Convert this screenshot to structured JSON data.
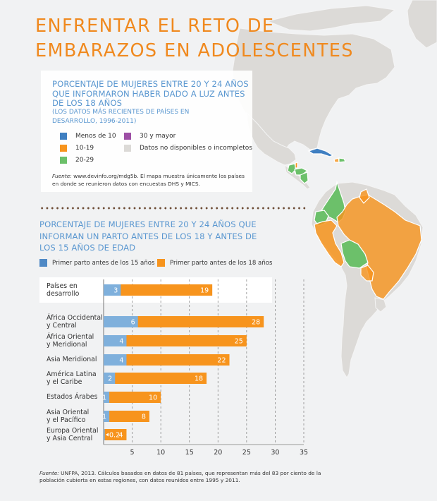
{
  "title_lines": [
    "ENFRENTAR EL RETO DE",
    "EMBARAZOS EN ADOLESCENTES"
  ],
  "map_legend": {
    "title": "PORCENTAJE DE MUJERES ENTRE 20 Y 24 AÑOS QUE INFORMARON HABER DADO A LUZ ANTES DE LOS 18 AÑOS",
    "subtitle": "(LOS DATOS MÁS RECIENTES DE PAÍSES EN DESARROLLO, 1996-2011)",
    "items": [
      {
        "label": "Menos de 10",
        "color": "#3f7fc1"
      },
      {
        "label": "10-19",
        "color": "#f7941d"
      },
      {
        "label": "20-29",
        "color": "#6cc06a"
      },
      {
        "label": "30 y mayor",
        "color": "#9d4fa5"
      },
      {
        "label": "Datos no disponibles o incompletos",
        "color": "#dcdad7"
      }
    ],
    "source_label": "Fuente:",
    "source_text": " www.devinfo.org/mdg5b. El mapa muestra únicamente los países en donde se reunieron datos con encuestas DHS y MICS."
  },
  "map_regions": {
    "colored": [
      {
        "region": "Cuba",
        "category": "Menos de 10"
      },
      {
        "region": "Haiti",
        "category": "10-19"
      },
      {
        "region": "Dominican Republic",
        "category": "20-29"
      },
      {
        "region": "Guatemala",
        "category": "20-29"
      },
      {
        "region": "Belize",
        "category": "10-19"
      },
      {
        "region": "Honduras",
        "category": "20-29"
      },
      {
        "region": "Nicaragua",
        "category": "20-29"
      },
      {
        "region": "Colombia",
        "category": "20-29"
      },
      {
        "region": "Ecuador",
        "category": "20-29"
      },
      {
        "region": "Peru",
        "category": "10-19"
      },
      {
        "region": "Bolivia",
        "category": "20-29"
      },
      {
        "region": "Brazil",
        "category": "10-19"
      },
      {
        "region": "Guyana",
        "category": "10-19"
      },
      {
        "region": "Paraguay",
        "category": "10-19"
      }
    ]
  },
  "chart_data": {
    "type": "bar",
    "orientation": "horizontal",
    "stacked_overlay": true,
    "title": "PORCENTAJE DE MUJERES ENTRE 20 Y 24 AÑOS QUE INFORMAN UN PARTO ANTES DE LOS 18 Y ANTES DE LOS 15 AÑOS DE EDAD",
    "xlabel": "",
    "ylabel": "",
    "xlim": [
      0,
      35
    ],
    "xticks": [
      5,
      10,
      15,
      20,
      25,
      30,
      35
    ],
    "grid": "vertical-dashed",
    "legend_position": "top-left",
    "categories": [
      "Países en desarrollo",
      "África Occidental y Central",
      "África Oriental y Meridional",
      "Asia Meridional",
      "América Latina y el Caribe",
      "Estados Árabes",
      "Asia Oriental y el Pacífico",
      "Europa Oriental y Asia Central"
    ],
    "category_label_lines": [
      [
        "Países en",
        "desarrollo"
      ],
      [
        "África Occidental",
        "y Central"
      ],
      [
        "África Oriental",
        "y Meridional"
      ],
      [
        "Asia Meridional"
      ],
      [
        "América Latina",
        "y el Caribe"
      ],
      [
        "Estados Árabes"
      ],
      [
        "Asia Oriental",
        "y el Pacífico"
      ],
      [
        "Europa Oriental",
        "y Asia Central"
      ]
    ],
    "series": [
      {
        "name": "Primer parto antes de los 15 años",
        "color": "#7fb0dc",
        "legend_color": "#4f89c5",
        "values": [
          3,
          6,
          4,
          4,
          2,
          1,
          1,
          0.2
        ],
        "labels": [
          "3",
          "6",
          "4",
          "4",
          "2",
          "1",
          "1",
          "0.2"
        ]
      },
      {
        "name": "Primer parto antes de los 18 años",
        "color": "#f7941d",
        "legend_color": "#f7941d",
        "values": [
          19,
          28,
          25,
          22,
          18,
          10,
          8,
          4
        ],
        "labels": [
          "19",
          "28",
          "25",
          "22",
          "18",
          "10",
          "8",
          "4"
        ]
      }
    ],
    "source_label": "Fuente:",
    "source_text": " UNFPA, 2013. Cálculos basados en datos de 81 países, que representan más del 83 por ciento de la población cubierta en estas regiones, con datos reunidos entre 1995 y 2011."
  }
}
